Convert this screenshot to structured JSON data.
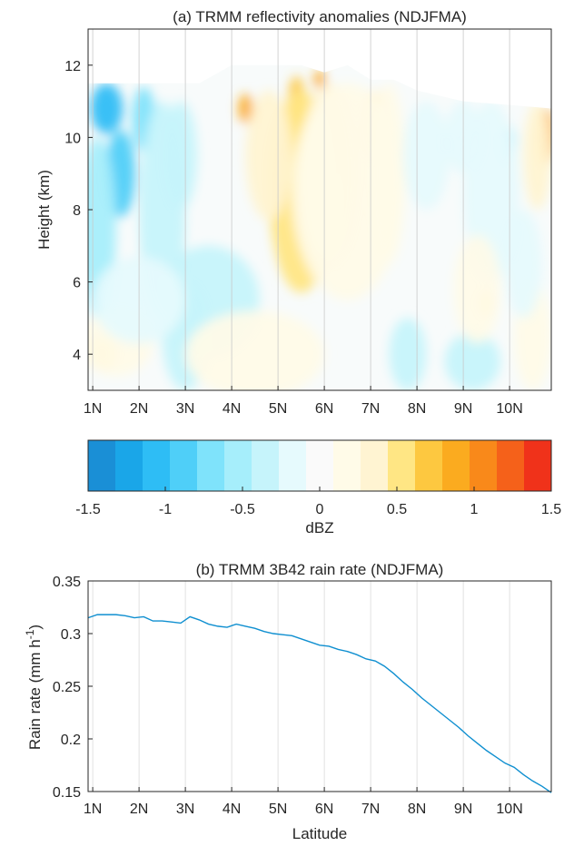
{
  "chart_data": [
    {
      "type": "heatmap",
      "title": "(a) TRMM reflectivity anomalies (NDJFMA)",
      "ylabel": "Height (km)",
      "xlabel": "",
      "x_ticks": [
        "1N",
        "2N",
        "3N",
        "4N",
        "5N",
        "6N",
        "7N",
        "8N",
        "9N",
        "10N"
      ],
      "y_ticks": [
        "4",
        "6",
        "8",
        "10",
        "12"
      ],
      "xlim": [
        0.9,
        10.9
      ],
      "ylim": [
        3,
        13
      ],
      "grid": "x",
      "colorbar": {
        "label": "dBZ",
        "ticks": [
          "-1.5",
          "-1",
          "-0.5",
          "0",
          "0.5",
          "1",
          "1.5"
        ],
        "range": [
          -1.5,
          1.5
        ],
        "colors": [
          "#1a8fd6",
          "#1aa6e8",
          "#2ebdf5",
          "#4fcff8",
          "#7fe3fb",
          "#a6eefb",
          "#c6f4fb",
          "#e6fafd",
          "#fafafa",
          "#fffbe8",
          "#fff4d2",
          "#ffe684",
          "#fdc840",
          "#fbab1f",
          "#f9891a",
          "#f5611a",
          "#f0321a"
        ]
      },
      "cells_note": "anomaly field in dBZ",
      "max_height_profile": {
        "lat": [
          0.9,
          3.3,
          4.0,
          4.5,
          5.0,
          5.5,
          6.0,
          6.5,
          7.0,
          7.5,
          8.0,
          9.0,
          10.0,
          10.9
        ],
        "height": [
          11.5,
          11.5,
          12.0,
          12.0,
          12.0,
          12.0,
          11.8,
          12.0,
          11.6,
          11.6,
          11.3,
          11.0,
          10.9,
          10.8
        ]
      },
      "features": [
        {
          "lat": 1.6,
          "h": 9.0,
          "rx": 0.32,
          "ry": 1.2,
          "v": -0.9
        },
        {
          "lat": 1.3,
          "h": 10.8,
          "rx": 0.35,
          "ry": 0.7,
          "v": -1.0
        },
        {
          "lat": 1.1,
          "h": 7.5,
          "rx": 0.4,
          "ry": 2.5,
          "v": -0.45
        },
        {
          "lat": 2.1,
          "h": 10.5,
          "rx": 0.25,
          "ry": 0.9,
          "v": -0.7
        },
        {
          "lat": 2.5,
          "h": 8.0,
          "rx": 0.5,
          "ry": 3.0,
          "v": -0.35
        },
        {
          "lat": 2.9,
          "h": 9.5,
          "rx": 0.35,
          "ry": 1.5,
          "v": -0.35
        },
        {
          "lat": 3.5,
          "h": 5.5,
          "rx": 1.1,
          "ry": 1.5,
          "v": -0.3
        },
        {
          "lat": 3.0,
          "h": 4.5,
          "rx": 0.5,
          "ry": 1.5,
          "v": -0.35
        },
        {
          "lat": 1.2,
          "h": 4.0,
          "rx": 0.3,
          "ry": 0.45,
          "v": 0.45
        },
        {
          "lat": 1.5,
          "h": 4.3,
          "rx": 0.8,
          "ry": 0.9,
          "v": 0.15
        },
        {
          "lat": 4.3,
          "h": 10.8,
          "rx": 0.15,
          "ry": 0.4,
          "v": 0.95
        },
        {
          "lat": 5.4,
          "h": 9.0,
          "rx": 0.3,
          "ry": 0.6,
          "v": 0.85
        },
        {
          "lat": 5.4,
          "h": 10.5,
          "rx": 0.22,
          "ry": 1.2,
          "v": 0.75
        },
        {
          "lat": 5.5,
          "h": 8.5,
          "rx": 0.7,
          "ry": 2.8,
          "v": 0.5
        },
        {
          "lat": 6.2,
          "h": 7.8,
          "rx": 0.2,
          "ry": 1.2,
          "v": 0.6
        },
        {
          "lat": 5.9,
          "h": 11.6,
          "rx": 0.12,
          "ry": 0.25,
          "v": 0.9
        },
        {
          "lat": 6.1,
          "h": 9.0,
          "rx": 0.6,
          "ry": 2.5,
          "v": 0.35
        },
        {
          "lat": 4.8,
          "h": 9.5,
          "rx": 0.5,
          "ry": 1.8,
          "v": 0.3
        },
        {
          "lat": 7.1,
          "h": 10.3,
          "rx": 0.3,
          "ry": 1.0,
          "v": 0.35
        },
        {
          "lat": 7.4,
          "h": 9.0,
          "rx": 0.35,
          "ry": 2.5,
          "v": 0.25
        },
        {
          "lat": 6.5,
          "h": 8.5,
          "rx": 1.2,
          "ry": 3.0,
          "v": 0.18
        },
        {
          "lat": 4.5,
          "h": 4.0,
          "rx": 1.5,
          "ry": 1.2,
          "v": 0.12
        },
        {
          "lat": 7.8,
          "h": 4.0,
          "rx": 0.4,
          "ry": 1.0,
          "v": -0.3
        },
        {
          "lat": 9.2,
          "h": 3.8,
          "rx": 0.6,
          "ry": 0.8,
          "v": -0.3
        },
        {
          "lat": 8.2,
          "h": 9.5,
          "rx": 0.5,
          "ry": 1.5,
          "v": -0.25
        },
        {
          "lat": 9.0,
          "h": 10.0,
          "rx": 0.4,
          "ry": 1.0,
          "v": -0.25
        },
        {
          "lat": 10.0,
          "h": 9.8,
          "rx": 0.15,
          "ry": 0.5,
          "v": -0.55
        },
        {
          "lat": 9.6,
          "h": 8.5,
          "rx": 0.6,
          "ry": 2.5,
          "v": -0.2
        },
        {
          "lat": 9.5,
          "h": 5.4,
          "rx": 0.15,
          "ry": 0.35,
          "v": 0.5
        },
        {
          "lat": 9.3,
          "h": 5.8,
          "rx": 0.5,
          "ry": 1.5,
          "v": 0.15
        },
        {
          "lat": 10.8,
          "h": 10.0,
          "rx": 0.2,
          "ry": 0.8,
          "v": 0.85
        },
        {
          "lat": 10.6,
          "h": 9.5,
          "rx": 0.3,
          "ry": 1.5,
          "v": 0.35
        },
        {
          "lat": 10.5,
          "h": 4.5,
          "rx": 0.4,
          "ry": 1.5,
          "v": 0.15
        },
        {
          "lat": 10.3,
          "h": 6.5,
          "rx": 0.4,
          "ry": 1.5,
          "v": -0.15
        },
        {
          "lat": 2.0,
          "h": 5.5,
          "rx": 1.0,
          "ry": 1.2,
          "v": -0.25
        }
      ]
    },
    {
      "type": "line",
      "title": "(b) TRMM 3B42 rain rate (NDJFMA)",
      "xlabel": "Latitude",
      "ylabel": "Rain rate (mm h",
      "ylabel_sup": "-1",
      "ylabel_end": ")",
      "x_ticks": [
        "1N",
        "2N",
        "3N",
        "4N",
        "5N",
        "6N",
        "7N",
        "8N",
        "9N",
        "10N"
      ],
      "y_ticks": [
        "0.15",
        "0.2",
        "0.25",
        "0.3",
        "0.35"
      ],
      "xlim": [
        0.9,
        10.9
      ],
      "ylim": [
        0.15,
        0.35
      ],
      "grid": "x",
      "color": "#0f8fd0",
      "x": [
        0.9,
        1.1,
        1.3,
        1.5,
        1.7,
        1.9,
        2.1,
        2.3,
        2.5,
        2.7,
        2.9,
        3.1,
        3.3,
        3.5,
        3.7,
        3.9,
        4.1,
        4.3,
        4.5,
        4.7,
        4.9,
        5.1,
        5.3,
        5.5,
        5.7,
        5.9,
        6.1,
        6.3,
        6.5,
        6.7,
        6.9,
        7.1,
        7.3,
        7.5,
        7.7,
        7.9,
        8.1,
        8.3,
        8.5,
        8.7,
        8.9,
        9.1,
        9.3,
        9.5,
        9.7,
        9.9,
        10.1,
        10.3,
        10.5,
        10.7,
        10.9
      ],
      "values": [
        0.315,
        0.318,
        0.318,
        0.318,
        0.317,
        0.315,
        0.316,
        0.312,
        0.312,
        0.311,
        0.31,
        0.316,
        0.313,
        0.309,
        0.307,
        0.306,
        0.309,
        0.307,
        0.305,
        0.302,
        0.3,
        0.299,
        0.298,
        0.295,
        0.292,
        0.289,
        0.288,
        0.285,
        0.283,
        0.28,
        0.276,
        0.274,
        0.269,
        0.262,
        0.254,
        0.247,
        0.239,
        0.232,
        0.225,
        0.218,
        0.211,
        0.203,
        0.196,
        0.189,
        0.183,
        0.177,
        0.173,
        0.166,
        0.16,
        0.155,
        0.149
      ]
    }
  ]
}
